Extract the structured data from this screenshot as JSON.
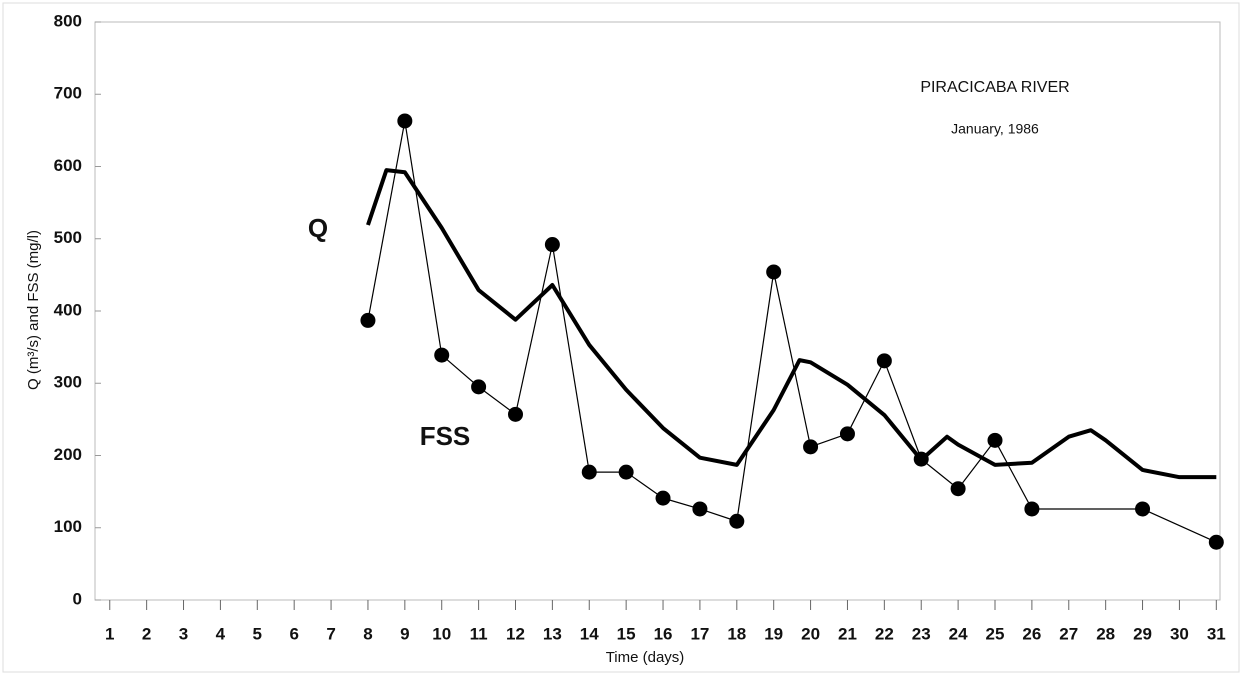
{
  "chart_data": {
    "type": "line",
    "title": "PIRACICABA RIVER",
    "subtitle": "January, 1986",
    "x_label": "Time (days)",
    "y_label": "Q (m³/s) and FSS (mg/l)",
    "xlim": [
      0.6,
      31.1
    ],
    "xticks": [
      1,
      2,
      3,
      4,
      5,
      6,
      7,
      8,
      9,
      10,
      11,
      12,
      13,
      14,
      15,
      16,
      17,
      18,
      19,
      20,
      21,
      22,
      23,
      24,
      25,
      26,
      27,
      28,
      29,
      30,
      31
    ],
    "ylim": [
      0,
      800
    ],
    "yticks": [
      0,
      100,
      200,
      300,
      400,
      500,
      600,
      700,
      800
    ],
    "series": [
      {
        "name": "Q",
        "color": "#000000",
        "x": [
          8,
          8.5,
          9,
          10,
          11,
          12,
          13,
          14,
          15,
          16,
          17,
          18,
          19,
          19.7,
          20,
          21,
          22,
          23,
          23.7,
          24,
          25,
          26,
          27,
          27.6,
          28,
          29,
          30,
          31
        ],
        "values": [
          519,
          595,
          592,
          515,
          429,
          388,
          436,
          353,
          291,
          238,
          197,
          187,
          263,
          332,
          329,
          298,
          256,
          194,
          226,
          215,
          187,
          190,
          226,
          235,
          221,
          180,
          170,
          170
        ]
      },
      {
        "name": "FSS",
        "color": "#000000",
        "x": [
          8,
          9,
          10,
          11,
          12,
          13,
          14,
          15,
          16,
          17,
          18,
          19,
          20,
          21,
          22,
          23,
          24,
          25,
          26,
          29,
          31
        ],
        "values": [
          387,
          663,
          339,
          295,
          257,
          492,
          177,
          177,
          141,
          126,
          109,
          454,
          212,
          230,
          331,
          195,
          154,
          221,
          126,
          126,
          80
        ]
      }
    ]
  }
}
